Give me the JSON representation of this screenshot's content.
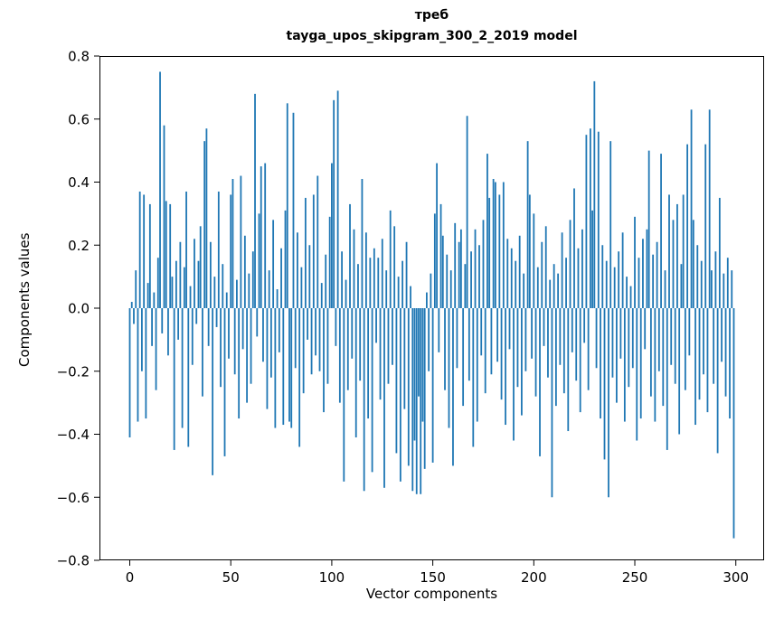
{
  "figure": {
    "title": "треб",
    "subtitle": "tayga_upos_skipgram_300_2_2019 model",
    "xlabel": "Vector components",
    "ylabel": "Components values"
  },
  "chart_data": {
    "type": "bar",
    "title": "треб",
    "subtitle": "tayga_upos_skipgram_300_2_2019 model",
    "xlabel": "Vector components",
    "ylabel": "Components values",
    "bar_color": "#1f77b4",
    "grid": false,
    "legend": null,
    "xlim": [
      -15,
      314
    ],
    "ylim": [
      -0.8,
      0.8
    ],
    "xticks": [
      0,
      50,
      100,
      150,
      200,
      250,
      300
    ],
    "xtick_labels": [
      "0",
      "50",
      "100",
      "150",
      "200",
      "250",
      "300"
    ],
    "yticks": [
      -0.8,
      -0.6,
      -0.4,
      -0.2,
      0.0,
      0.2,
      0.4,
      0.6,
      0.8
    ],
    "ytick_labels": [
      "−0.8",
      "−0.6",
      "−0.4",
      "−0.2",
      "0.0",
      "0.2",
      "0.4",
      "0.6",
      "0.8"
    ],
    "x_start": 0,
    "values": [
      -0.41,
      0.02,
      -0.05,
      0.12,
      -0.36,
      0.37,
      -0.2,
      0.36,
      -0.35,
      0.08,
      0.33,
      -0.12,
      0.05,
      -0.26,
      0.16,
      0.75,
      -0.08,
      0.58,
      0.34,
      -0.15,
      0.33,
      0.1,
      -0.45,
      0.15,
      -0.1,
      0.21,
      -0.38,
      0.13,
      0.37,
      -0.44,
      0.07,
      -0.18,
      0.22,
      -0.05,
      0.15,
      0.26,
      -0.28,
      0.53,
      0.57,
      -0.12,
      0.21,
      -0.53,
      0.1,
      -0.06,
      0.37,
      -0.25,
      0.14,
      -0.47,
      0.05,
      -0.16,
      0.36,
      0.41,
      -0.21,
      0.09,
      -0.35,
      0.42,
      -0.13,
      0.23,
      -0.3,
      0.11,
      -0.24,
      0.18,
      0.68,
      -0.09,
      0.3,
      0.45,
      -0.17,
      0.46,
      -0.32,
      0.12,
      -0.22,
      0.28,
      -0.38,
      0.06,
      -0.14,
      0.19,
      -0.37,
      0.31,
      0.65,
      -0.36,
      -0.38,
      0.62,
      -0.19,
      0.24,
      -0.44,
      0.13,
      -0.27,
      0.35,
      -0.1,
      0.2,
      -0.21,
      0.36,
      -0.15,
      0.42,
      -0.2,
      0.08,
      -0.33,
      0.17,
      -0.24,
      0.29,
      0.46,
      0.66,
      -0.12,
      0.69,
      -0.3,
      0.18,
      -0.55,
      0.09,
      -0.26,
      0.33,
      -0.16,
      0.25,
      -0.41,
      0.14,
      -0.23,
      0.41,
      -0.58,
      0.24,
      -0.35,
      0.16,
      -0.52,
      0.19,
      -0.11,
      0.16,
      -0.29,
      0.22,
      -0.57,
      0.12,
      -0.24,
      0.31,
      -0.18,
      0.26,
      -0.46,
      0.1,
      -0.55,
      0.15,
      -0.32,
      0.21,
      -0.5,
      0.07,
      -0.58,
      -0.42,
      -0.59,
      -0.28,
      -0.59,
      -0.36,
      -0.51,
      0.05,
      -0.2,
      0.11,
      -0.49,
      0.3,
      0.46,
      -0.14,
      0.33,
      0.23,
      -0.26,
      0.17,
      -0.38,
      0.12,
      -0.5,
      0.27,
      -0.19,
      0.21,
      0.25,
      -0.31,
      0.14,
      0.61,
      -0.23,
      0.18,
      -0.44,
      0.25,
      -0.36,
      0.2,
      -0.15,
      0.28,
      -0.27,
      0.49,
      0.35,
      -0.21,
      0.41,
      0.4,
      -0.17,
      0.36,
      -0.29,
      0.4,
      -0.37,
      0.22,
      -0.13,
      0.19,
      -0.42,
      0.15,
      -0.25,
      0.23,
      -0.34,
      0.11,
      -0.2,
      0.53,
      0.36,
      -0.16,
      0.3,
      -0.28,
      0.13,
      -0.47,
      0.21,
      -0.12,
      0.26,
      -0.22,
      0.09,
      -0.6,
      0.14,
      -0.31,
      0.11,
      -0.18,
      0.24,
      -0.27,
      0.16,
      -0.39,
      0.28,
      -0.14,
      0.38,
      -0.23,
      0.19,
      -0.33,
      0.25,
      -0.11,
      0.55,
      -0.26,
      0.57,
      0.31,
      0.72,
      -0.19,
      0.56,
      -0.35,
      0.2,
      -0.48,
      0.15,
      -0.6,
      0.53,
      -0.22,
      0.13,
      -0.3,
      0.18,
      -0.16,
      0.24,
      -0.36,
      0.1,
      -0.25,
      0.07,
      -0.19,
      0.29,
      -0.42,
      0.16,
      -0.35,
      0.22,
      -0.13,
      0.25,
      0.5,
      -0.28,
      0.17,
      -0.36,
      0.21,
      -0.2,
      0.49,
      -0.31,
      0.12,
      -0.45,
      0.36,
      -0.18,
      0.28,
      -0.24,
      0.33,
      -0.4,
      0.14,
      0.36,
      -0.26,
      0.52,
      -0.15,
      0.63,
      0.28,
      -0.37,
      0.2,
      -0.29,
      0.15,
      -0.21,
      0.52,
      -0.33,
      0.63,
      0.12,
      -0.24,
      0.18,
      -0.46,
      0.35,
      -0.17,
      0.11,
      -0.28,
      0.16,
      -0.35,
      0.12,
      -0.73
    ]
  }
}
